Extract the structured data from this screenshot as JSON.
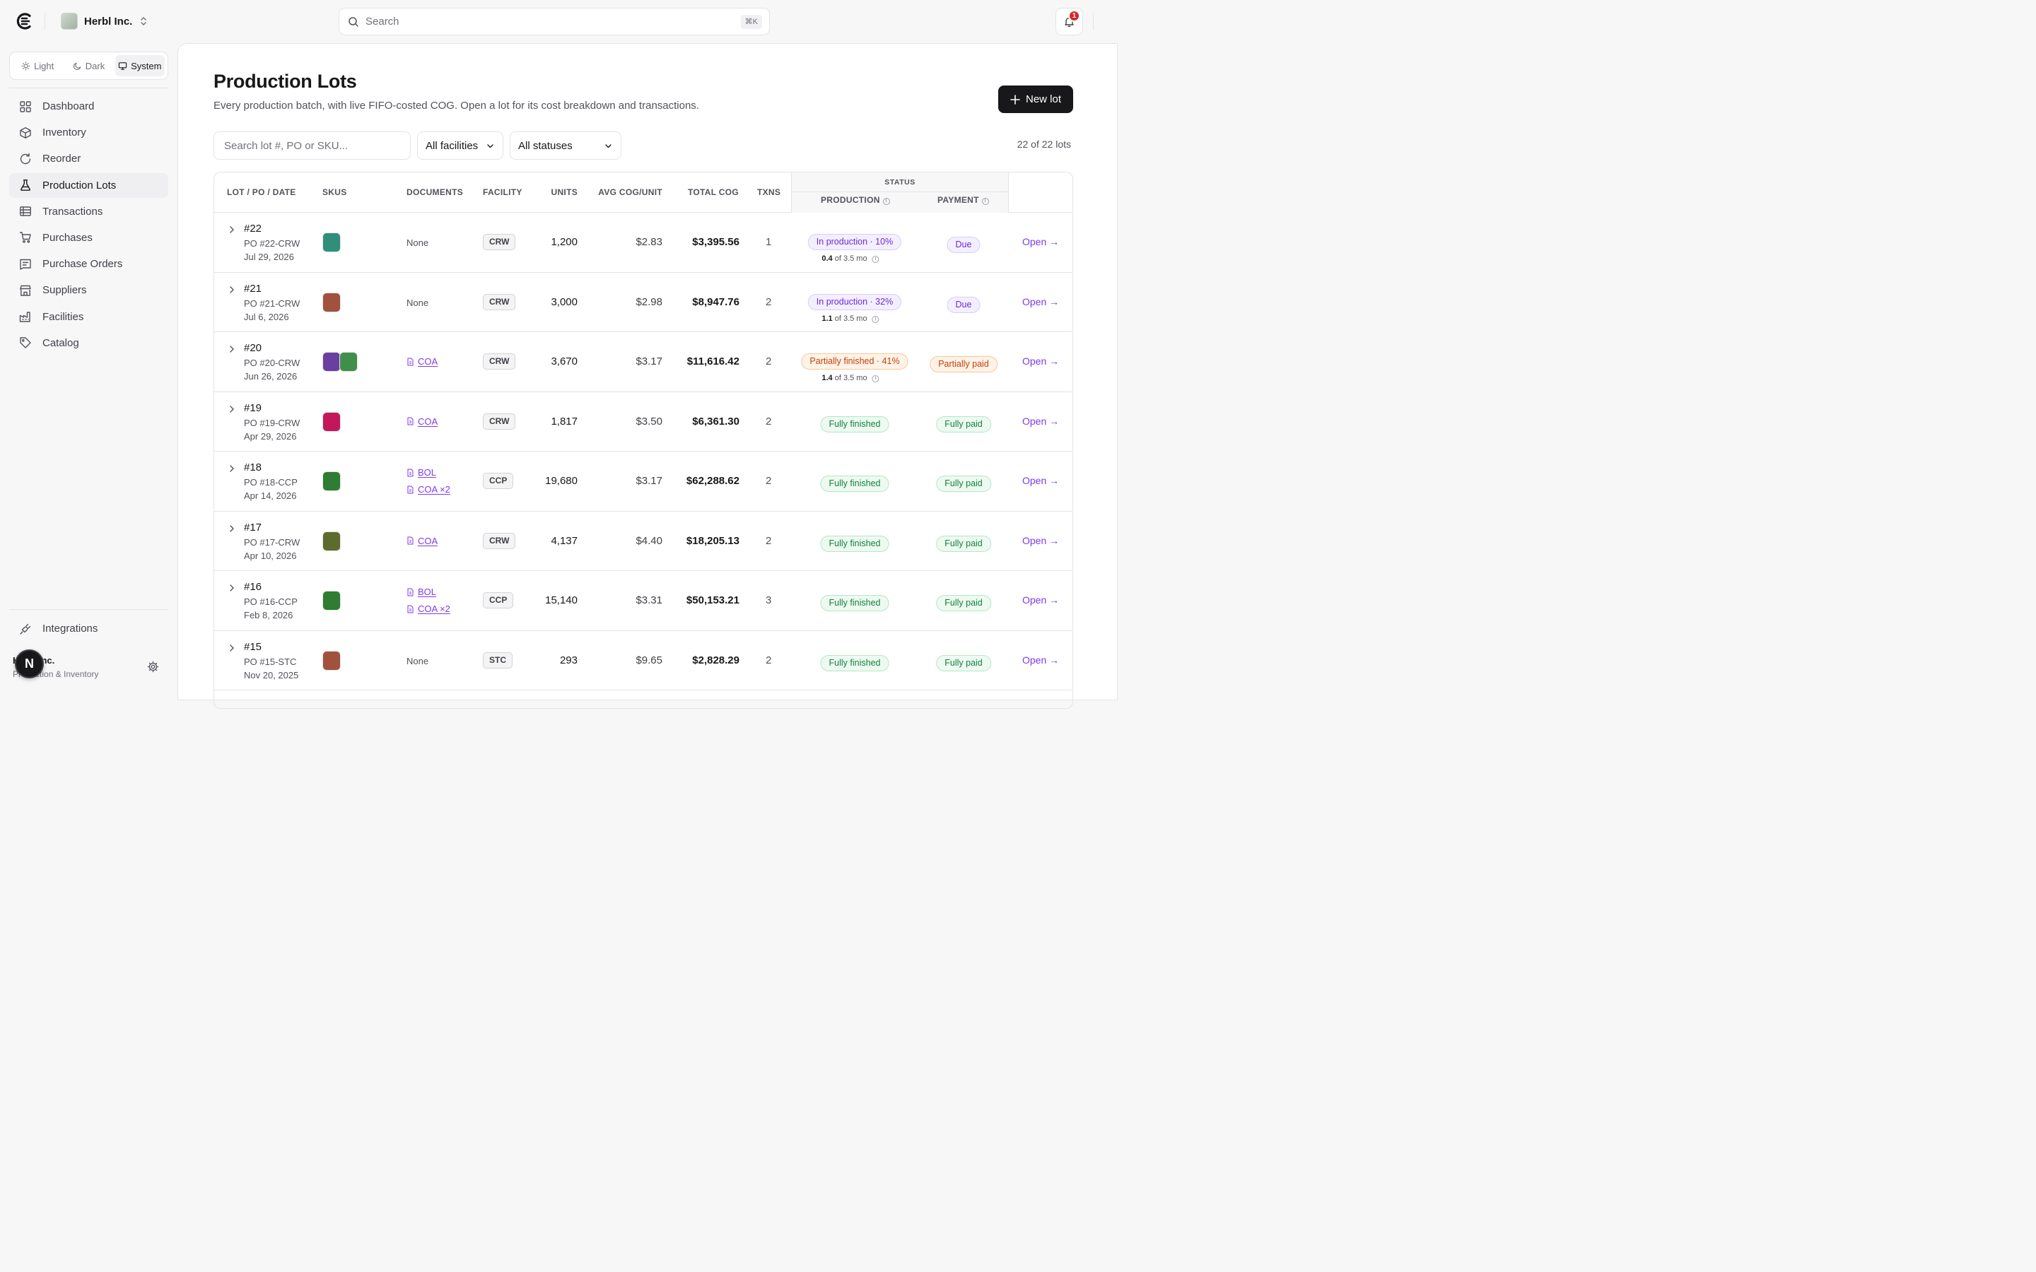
{
  "org": {
    "name": "Herbl Inc."
  },
  "search": {
    "placeholder": "Search",
    "shortcut": "⌘K"
  },
  "notifications": {
    "count": "1"
  },
  "theme": {
    "options": [
      "Light",
      "Dark",
      "System"
    ],
    "selected": "System"
  },
  "sidebar": {
    "items": [
      {
        "label": "Dashboard",
        "icon": "grid-icon"
      },
      {
        "label": "Inventory",
        "icon": "box-icon"
      },
      {
        "label": "Reorder",
        "icon": "refresh-icon"
      },
      {
        "label": "Production Lots",
        "icon": "flask-icon",
        "active": true
      },
      {
        "label": "Transactions",
        "icon": "ledger-icon"
      },
      {
        "label": "Purchases",
        "icon": "cart-icon"
      },
      {
        "label": "Purchase Orders",
        "icon": "receipt-icon"
      },
      {
        "label": "Suppliers",
        "icon": "store-icon"
      },
      {
        "label": "Facilities",
        "icon": "factory-icon"
      },
      {
        "label": "Catalog",
        "icon": "tag-icon"
      }
    ],
    "integrations": "Integrations",
    "user": {
      "name": "Herbl Inc.",
      "subtitle": "Production & Inventory",
      "initial": "N"
    }
  },
  "page": {
    "title": "Production Lots",
    "subtitle": "Every production batch, with live FIFO-costed COG. Open a lot for its cost breakdown and transactions.",
    "new_button": "New lot",
    "filters": {
      "search_placeholder": "Search lot #, PO or SKU...",
      "facility": "All facilities",
      "status": "All statuses"
    },
    "count": "22 of 22 lots"
  },
  "table": {
    "headers": {
      "lot": "LOT / PO / DATE",
      "skus": "SKUS",
      "documents": "DOCUMENTS",
      "facility": "FACILITY",
      "units": "UNITS",
      "avg_cog": "AVG COG/UNIT",
      "total_cog": "TOTAL COG",
      "txns": "TXNS",
      "status": "STATUS",
      "production": "PRODUCTION",
      "payment": "PAYMENT"
    },
    "open_label": "Open →",
    "none_label": "None",
    "rows": [
      {
        "lot": "#22",
        "po": "PO #22-CRW",
        "date": "Jul 29, 2026",
        "sku_colors": [
          "#2f8f7a"
        ],
        "docs": [],
        "facility": "CRW",
        "units": "1,200",
        "avg_cog": "$2.83",
        "total_cog": "$3,395.56",
        "txns": "1",
        "production": "In production · 10%",
        "production_kind": "violet",
        "progress_done": "0.4",
        "progress_rest": "of 3.5 mo",
        "payment": "Due",
        "payment_kind": "violet"
      },
      {
        "lot": "#21",
        "po": "PO #21-CRW",
        "date": "Jul 6, 2026",
        "sku_colors": [
          "#a0523d"
        ],
        "docs": [],
        "facility": "CRW",
        "units": "3,000",
        "avg_cog": "$2.98",
        "total_cog": "$8,947.76",
        "txns": "2",
        "production": "In production · 32%",
        "production_kind": "violet",
        "progress_done": "1.1",
        "progress_rest": "of 3.5 mo",
        "payment": "Due",
        "payment_kind": "violet"
      },
      {
        "lot": "#20",
        "po": "PO #20-CRW",
        "date": "Jun 26, 2026",
        "sku_colors": [
          "#6b3fa0",
          "#3f8f4a"
        ],
        "docs": [
          "COA"
        ],
        "facility": "CRW",
        "units": "3,670",
        "avg_cog": "$3.17",
        "total_cog": "$11,616.42",
        "txns": "2",
        "production": "Partially finished · 41%",
        "production_kind": "orange",
        "progress_done": "1.4",
        "progress_rest": "of 3.5 mo",
        "payment": "Partially paid",
        "payment_kind": "orange"
      },
      {
        "lot": "#19",
        "po": "PO #19-CRW",
        "date": "Apr 29, 2026",
        "sku_colors": [
          "#c2185b"
        ],
        "docs": [
          "COA"
        ],
        "facility": "CRW",
        "units": "1,817",
        "avg_cog": "$3.50",
        "total_cog": "$6,361.30",
        "txns": "2",
        "production": "Fully finished",
        "production_kind": "green",
        "payment": "Fully paid",
        "payment_kind": "green"
      },
      {
        "lot": "#18",
        "po": "PO #18-CCP",
        "date": "Apr 14, 2026",
        "sku_colors": [
          "#2e7d32"
        ],
        "docs": [
          "BOL",
          "COA ×2"
        ],
        "facility": "CCP",
        "units": "19,680",
        "avg_cog": "$3.17",
        "total_cog": "$62,288.62",
        "txns": "2",
        "production": "Fully finished",
        "production_kind": "green",
        "payment": "Fully paid",
        "payment_kind": "green"
      },
      {
        "lot": "#17",
        "po": "PO #17-CRW",
        "date": "Apr 10, 2026",
        "sku_colors": [
          "#5d6b2f"
        ],
        "docs": [
          "COA"
        ],
        "facility": "CRW",
        "units": "4,137",
        "avg_cog": "$4.40",
        "total_cog": "$18,205.13",
        "txns": "2",
        "production": "Fully finished",
        "production_kind": "green",
        "payment": "Fully paid",
        "payment_kind": "green"
      },
      {
        "lot": "#16",
        "po": "PO #16-CCP",
        "date": "Feb 8, 2026",
        "sku_colors": [
          "#2e7d32"
        ],
        "docs": [
          "BOL",
          "COA ×2"
        ],
        "facility": "CCP",
        "units": "15,140",
        "avg_cog": "$3.31",
        "total_cog": "$50,153.21",
        "txns": "3",
        "production": "Fully finished",
        "production_kind": "green",
        "payment": "Fully paid",
        "payment_kind": "green"
      },
      {
        "lot": "#15",
        "po": "PO #15-STC",
        "date": "Nov 20, 2025",
        "sku_colors": [
          "#a0523d"
        ],
        "docs": [],
        "facility": "STC",
        "units": "293",
        "avg_cog": "$9.65",
        "total_cog": "$2,828.29",
        "txns": "2",
        "production": "Fully finished",
        "production_kind": "green",
        "payment": "Fully paid",
        "payment_kind": "green"
      }
    ]
  }
}
